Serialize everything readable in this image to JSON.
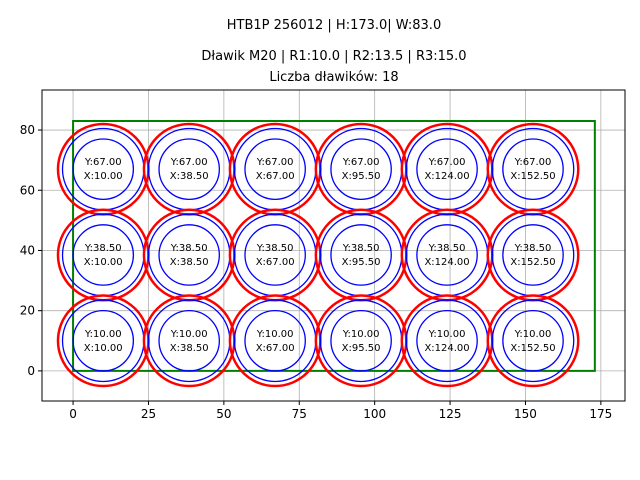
{
  "chart_data": {
    "type": "scatter",
    "title_lines": [
      "HTB1P 256012 | H:173.0| W:83.0",
      "Dławik M20 | R1:10.0 | R2:13.5 | R3:15.0",
      "Liczba dławików: 18"
    ],
    "xlabel": "",
    "ylabel": "",
    "xlim": [
      -10.3,
      183
    ],
    "ylim": [
      -10,
      93.3
    ],
    "xticks": [
      0,
      25,
      50,
      75,
      100,
      125,
      150,
      175
    ],
    "yticks": [
      0,
      20,
      40,
      60,
      80
    ],
    "grid": true,
    "aspect": "equal",
    "boundary": {
      "x": [
        0,
        173
      ],
      "y": [
        0,
        83
      ],
      "color": "#008000"
    },
    "radii": [
      {
        "r": 10.0,
        "color": "#0000ff"
      },
      {
        "r": 13.5,
        "color": "#0000ff"
      },
      {
        "r": 15.0,
        "color": "#ff0000"
      }
    ],
    "centers_x": [
      10.0,
      38.5,
      67.0,
      95.5,
      124.0,
      152.5
    ],
    "centers_y": [
      10.0,
      38.5,
      67.0
    ],
    "label_x_format": "X:{x}",
    "label_y_format": "Y:{y}"
  }
}
